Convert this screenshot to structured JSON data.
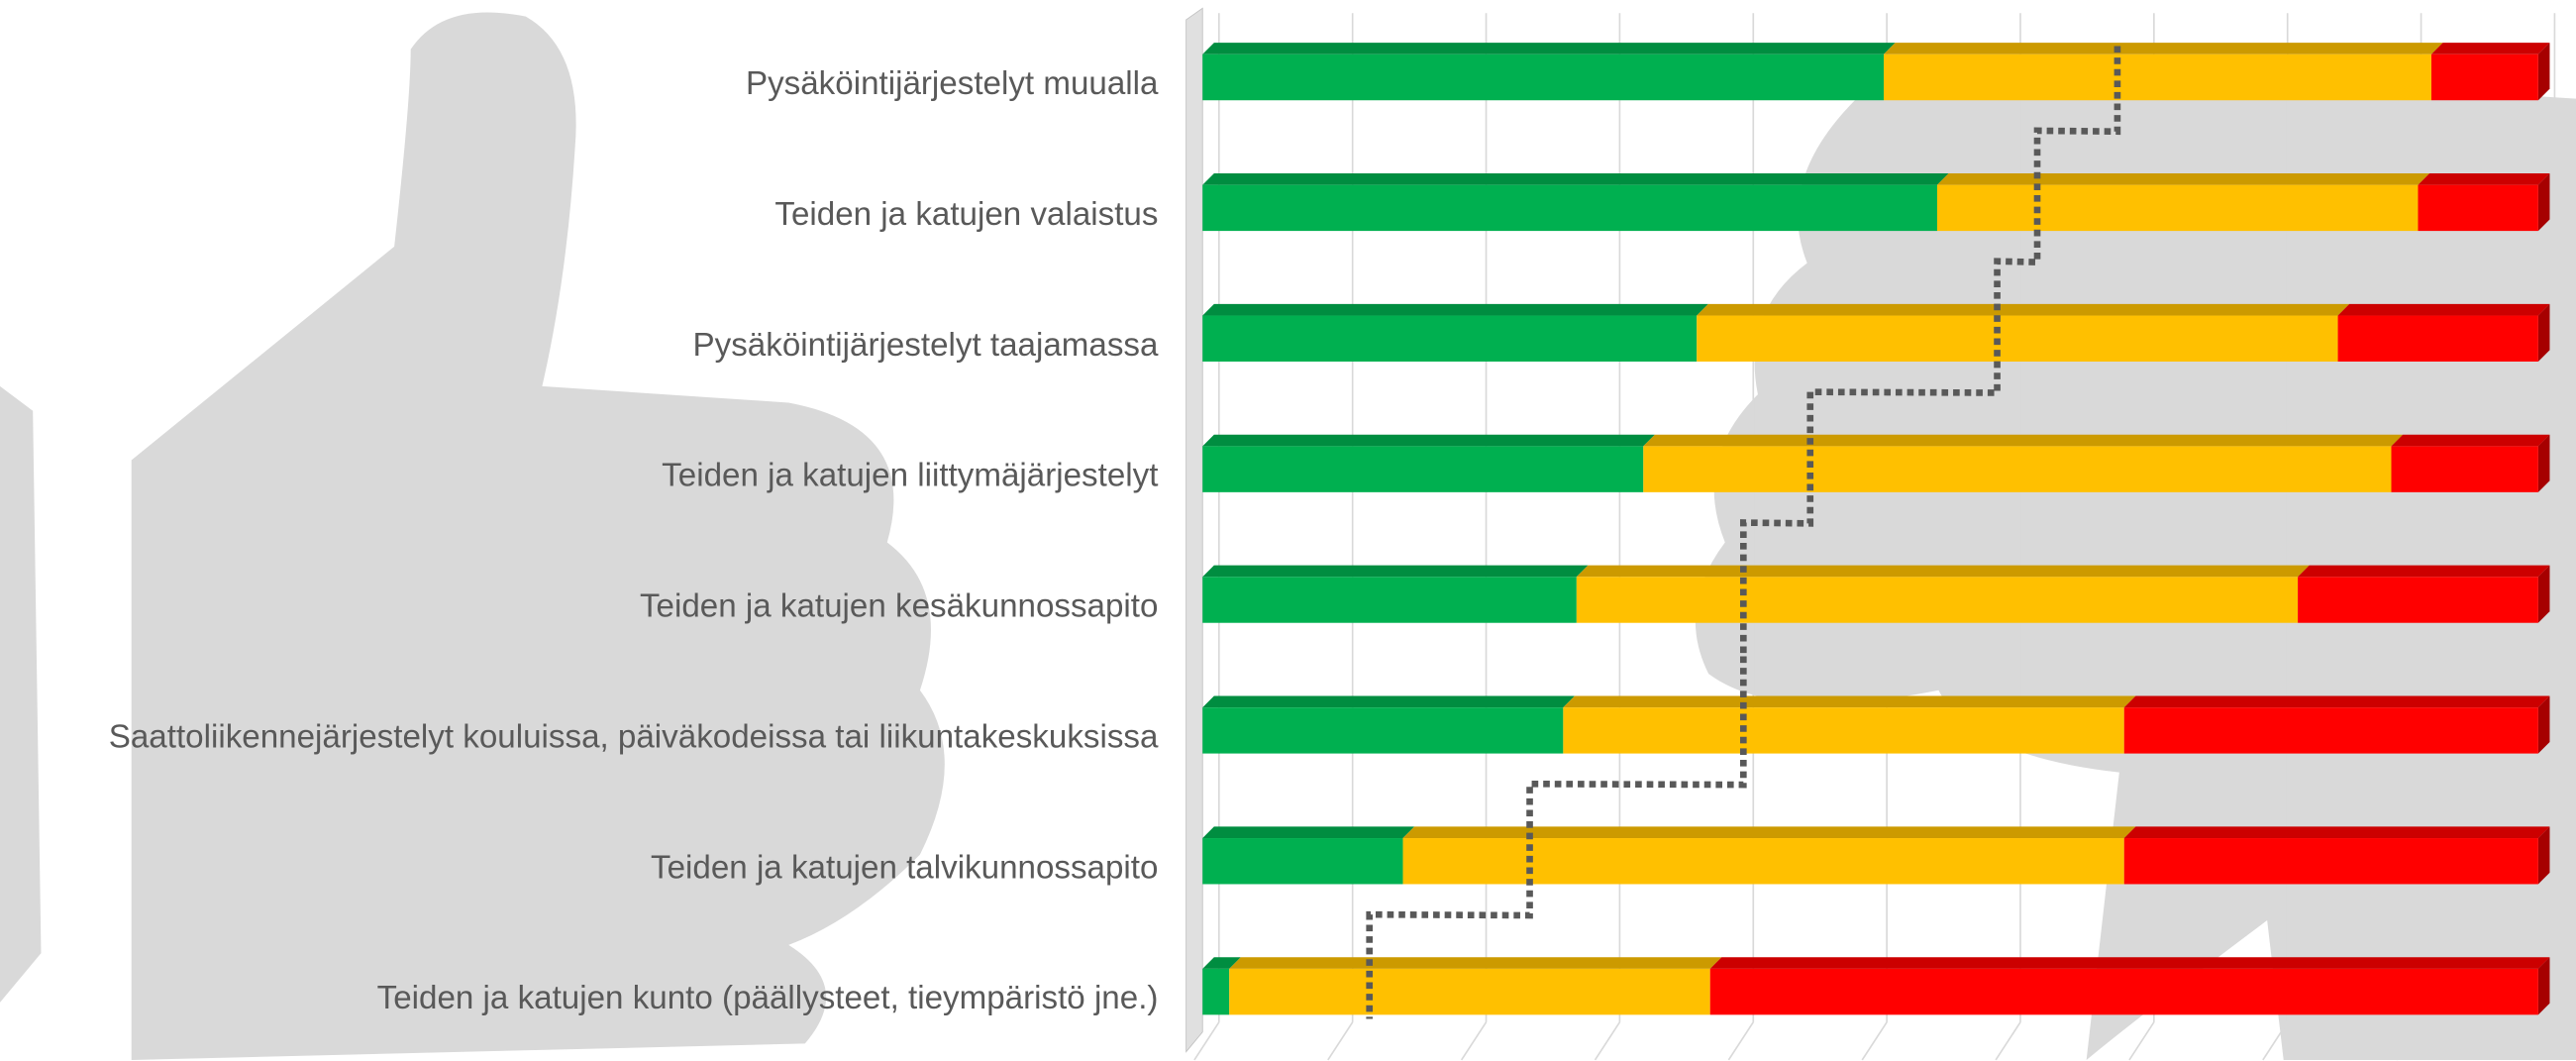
{
  "chart_data": {
    "type": "stacked_bar_horizontal",
    "categories": [
      "Pysäköintijärjestelyt muualla",
      "Teiden ja katujen valaistus",
      "Pysäköintijärjestelyt taajamassa",
      "Teiden ja katujen liittymäjärjestelyt",
      "Teiden ja katujen kesäkunnossapito",
      "Saattoliikennejärjestelyt kouluissa, päiväkodeissa tai liikuntakeskuksissa",
      "Teiden ja katujen talvikunnossapito",
      "Teiden ja katujen kunto (päällysteet, tieympäristö jne.)"
    ],
    "series": [
      {
        "color": "#00b050",
        "values": [
          51,
          55,
          37,
          33,
          28,
          27,
          15,
          2
        ]
      },
      {
        "color": "#ffc000",
        "values": [
          41,
          36,
          48,
          56,
          54,
          42,
          54,
          36
        ]
      },
      {
        "color": "#ff0000",
        "values": [
          8,
          9,
          15,
          11,
          18,
          31,
          31,
          62
        ]
      }
    ],
    "line": {
      "color": "#595959",
      "values": [
        68,
        62,
        59,
        45,
        40,
        40,
        24,
        12
      ]
    },
    "xlim": [
      0,
      100
    ],
    "xticks": [
      0,
      10,
      20,
      30,
      40,
      50,
      60,
      70,
      80,
      90,
      100
    ],
    "grid": true
  }
}
